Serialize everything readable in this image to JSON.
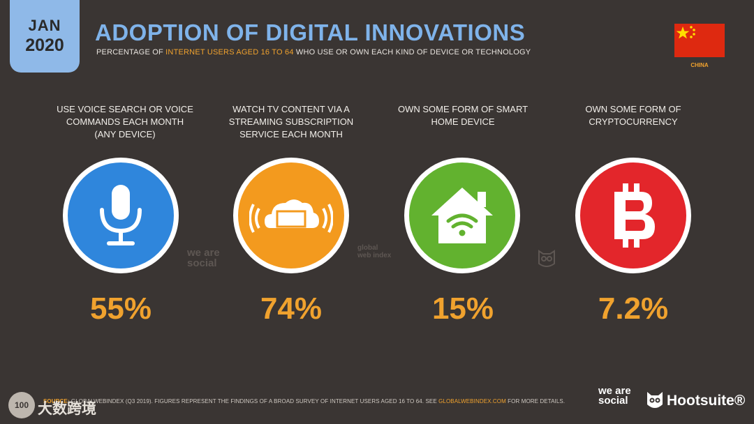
{
  "header": {
    "month": "JAN",
    "year": "2020",
    "title": "ADOPTION OF DIGITAL INNOVATIONS",
    "subtitle_pre": "PERCENTAGE OF ",
    "subtitle_highlight": "INTERNET USERS AGED 16 TO 64",
    "subtitle_post": " WHO USE OR OWN EACH KIND OF DEVICE OR TECHNOLOGY",
    "country": "CHINA"
  },
  "chart_data": {
    "type": "bar",
    "categories": [
      "USE VOICE SEARCH OR VOICE COMMANDS EACH MONTH (ANY DEVICE)",
      "WATCH TV CONTENT VIA A STREAMING SUBSCRIPTION SERVICE EACH MONTH",
      "OWN SOME FORM OF SMART HOME DEVICE",
      "OWN SOME FORM OF CRYPTOCURRENCY"
    ],
    "values": [
      55,
      74,
      15,
      7.2
    ],
    "value_labels": [
      "55%",
      "74%",
      "15%",
      "7.2%"
    ],
    "unit": "%",
    "icons": [
      "microphone-icon",
      "streaming-tv-icon",
      "smart-home-icon",
      "bitcoin-icon"
    ],
    "colors": [
      "#2f86dc",
      "#f39a1e",
      "#62b22f",
      "#e3262b"
    ]
  },
  "watermarks": {
    "was": "we are social",
    "gwi": "global web index"
  },
  "footer": {
    "source_label": "SOURCE:",
    "source_text": " GLOBALWEBINDEX (Q3 2019). FIGURES REPRESENT THE FINDINGS OF A BROAD SURVEY OF INTERNET USERS AGED 16 TO 64. SEE ",
    "source_link": "GLOBALWEBINDEX.COM",
    "source_tail": " FOR MORE DETAILS.",
    "brand_was": "we are social",
    "brand_hootsuite": "Hootsuite®",
    "corner_badge": "100",
    "corner_text": "大数跨境"
  },
  "colors": {
    "background": "#3a3533",
    "title": "#7fb3ea",
    "accent": "#f0a22e",
    "badge": "#8fb9e8"
  }
}
